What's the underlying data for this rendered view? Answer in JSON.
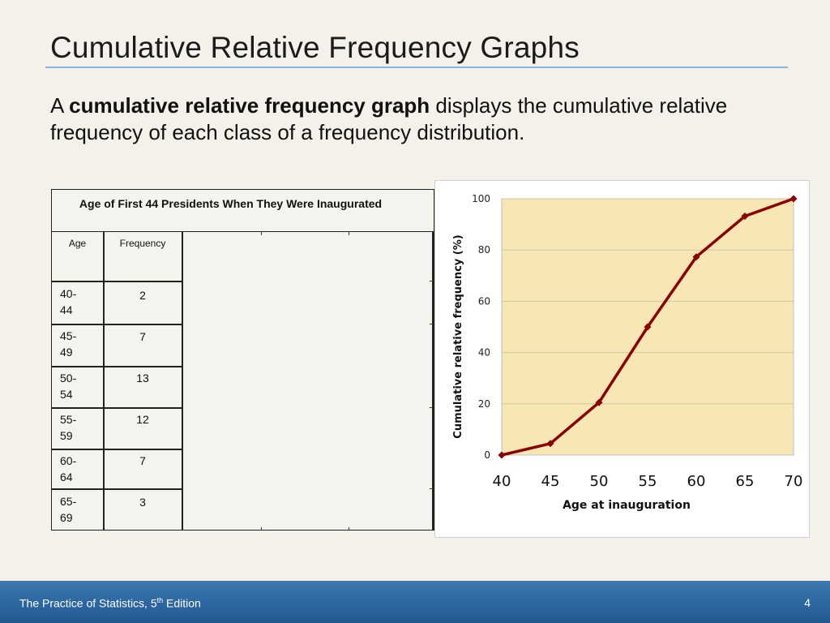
{
  "slide": {
    "title": "Cumulative Relative Frequency Graphs",
    "lead": {
      "prefix": "A ",
      "bold": "cumulative relative frequency graph",
      "suffix": " displays the cumulative relative frequency of each class of a frequency distribution."
    }
  },
  "table": {
    "title": "Age of First 44 Presidents When They Were Inaugurated",
    "headers": [
      "Age",
      "Frequency"
    ],
    "rows": [
      {
        "age": "40-44",
        "frequency": "2"
      },
      {
        "age": "45-49",
        "frequency": "7"
      },
      {
        "age": "50-54",
        "frequency": "13"
      },
      {
        "age": "55-59",
        "frequency": "12"
      },
      {
        "age": "60-64",
        "frequency": "7"
      },
      {
        "age": "65-69",
        "frequency": "3"
      }
    ]
  },
  "chart_data": {
    "type": "line",
    "title": "",
    "xlabel": "Age at inauguration",
    "ylabel": "Cumulative relative frequency (%)",
    "x": [
      40,
      45,
      50,
      55,
      60,
      65,
      70
    ],
    "series": [
      {
        "values": [
          0,
          4.5,
          20.5,
          50,
          77.3,
          93.2,
          100
        ]
      }
    ],
    "xticks": [
      "40",
      "45",
      "50",
      "55",
      "60",
      "65",
      "70"
    ],
    "yticks": [
      "0",
      "20",
      "40",
      "60",
      "80",
      "100"
    ],
    "xlim": [
      40,
      70
    ],
    "ylim": [
      0,
      100
    ],
    "grid": true,
    "colors": {
      "line": "#8b0000",
      "plot_bg": "#f7e7b5",
      "grid": "#cfc6a8"
    }
  },
  "footer": {
    "book": "The Practice of Statistics, 5",
    "sup": "th",
    "edition": " Edition",
    "page": "4"
  }
}
